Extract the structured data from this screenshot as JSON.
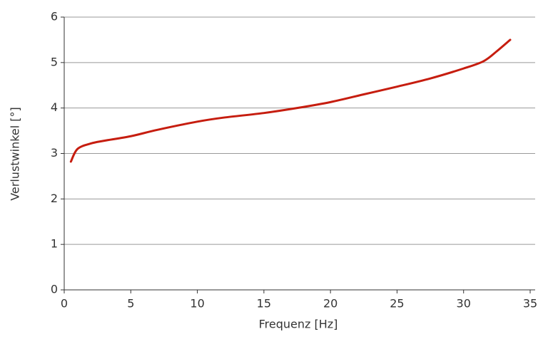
{
  "chart_data": {
    "type": "line",
    "x_label": "Frequenz [Hz]",
    "y_label": "Verlustwinkel [°]",
    "x": [
      0.5,
      1,
      2,
      3,
      5,
      7,
      10,
      12,
      15,
      17.5,
      20,
      22.5,
      25,
      27.5,
      30,
      31.5,
      32.5,
      33.5
    ],
    "series": [
      {
        "name": "Verlustwinkel",
        "color": "#c61d0f",
        "values": [
          2.82,
          3.1,
          3.22,
          3.28,
          3.38,
          3.52,
          3.7,
          3.79,
          3.89,
          4.0,
          4.13,
          4.3,
          4.47,
          4.65,
          4.87,
          5.03,
          5.25,
          5.5
        ]
      }
    ],
    "xlim": [
      0,
      35
    ],
    "xticks": [
      0,
      5,
      10,
      15,
      20,
      25,
      30,
      35
    ],
    "ylim": [
      0,
      6
    ],
    "yticks": [
      0,
      1,
      2,
      3,
      4,
      5,
      6
    ],
    "grid": true
  }
}
